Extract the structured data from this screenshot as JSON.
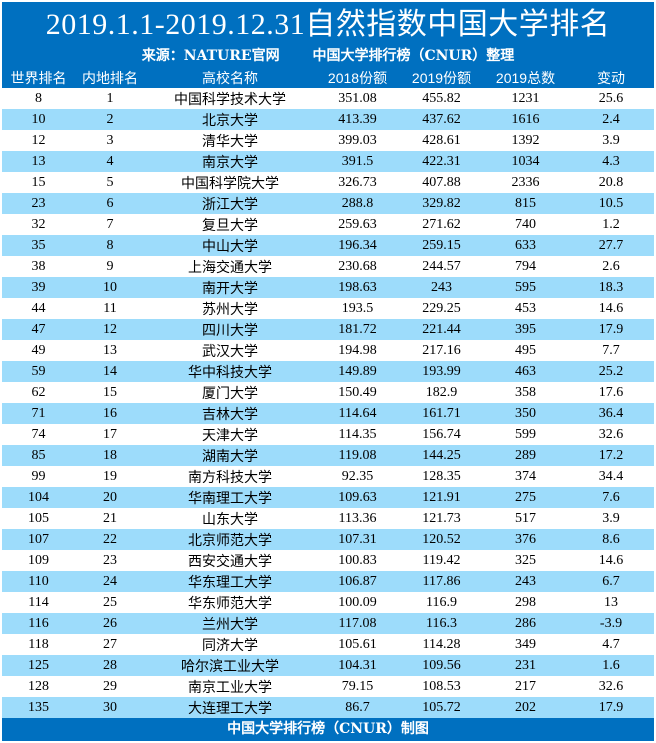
{
  "title": "2019.1.1-2019.12.31自然指数中国大学排名",
  "subtitle_left": "来源：NATURE官网",
  "subtitle_right": "中国大学排行榜（CNUR）整理",
  "footer": "中国大学排行榜（CNUR）制图",
  "colors": {
    "header_bg": "#0070C0",
    "alt_row_bg": "#9DDCFB"
  },
  "columns": [
    "世界排名",
    "内地排名",
    "高校名称",
    "2018份额",
    "2019份额",
    "2019总数",
    "变动"
  ],
  "rows": [
    [
      "8",
      "1",
      "中国科学技术大学",
      "351.08",
      "455.82",
      "1231",
      "25.6"
    ],
    [
      "10",
      "2",
      "北京大学",
      "413.39",
      "437.62",
      "1616",
      "2.4"
    ],
    [
      "12",
      "3",
      "清华大学",
      "399.03",
      "428.61",
      "1392",
      "3.9"
    ],
    [
      "13",
      "4",
      "南京大学",
      "391.5",
      "422.31",
      "1034",
      "4.3"
    ],
    [
      "15",
      "5",
      "中国科学院大学",
      "326.73",
      "407.88",
      "2336",
      "20.8"
    ],
    [
      "23",
      "6",
      "浙江大学",
      "288.8",
      "329.82",
      "815",
      "10.5"
    ],
    [
      "32",
      "7",
      "复旦大学",
      "259.63",
      "271.62",
      "740",
      "1.2"
    ],
    [
      "35",
      "8",
      "中山大学",
      "196.34",
      "259.15",
      "633",
      "27.7"
    ],
    [
      "38",
      "9",
      "上海交通大学",
      "230.68",
      "244.57",
      "794",
      "2.6"
    ],
    [
      "39",
      "10",
      "南开大学",
      "198.63",
      "243",
      "595",
      "18.3"
    ],
    [
      "44",
      "11",
      "苏州大学",
      "193.5",
      "229.25",
      "453",
      "14.6"
    ],
    [
      "47",
      "12",
      "四川大学",
      "181.72",
      "221.44",
      "395",
      "17.9"
    ],
    [
      "49",
      "13",
      "武汉大学",
      "194.98",
      "217.16",
      "495",
      "7.7"
    ],
    [
      "59",
      "14",
      "华中科技大学",
      "149.89",
      "193.99",
      "463",
      "25.2"
    ],
    [
      "62",
      "15",
      "厦门大学",
      "150.49",
      "182.9",
      "358",
      "17.6"
    ],
    [
      "71",
      "16",
      "吉林大学",
      "114.64",
      "161.71",
      "350",
      "36.4"
    ],
    [
      "74",
      "17",
      "天津大学",
      "114.35",
      "156.74",
      "599",
      "32.6"
    ],
    [
      "85",
      "18",
      "湖南大学",
      "119.08",
      "144.25",
      "289",
      "17.2"
    ],
    [
      "99",
      "19",
      "南方科技大学",
      "92.35",
      "128.35",
      "374",
      "34.4"
    ],
    [
      "104",
      "20",
      "华南理工大学",
      "109.63",
      "121.91",
      "275",
      "7.6"
    ],
    [
      "105",
      "21",
      "山东大学",
      "113.36",
      "121.73",
      "517",
      "3.9"
    ],
    [
      "107",
      "22",
      "北京师范大学",
      "107.31",
      "120.52",
      "376",
      "8.6"
    ],
    [
      "109",
      "23",
      "西安交通大学",
      "100.83",
      "119.42",
      "325",
      "14.6"
    ],
    [
      "110",
      "24",
      "华东理工大学",
      "106.87",
      "117.86",
      "243",
      "6.7"
    ],
    [
      "114",
      "25",
      "华东师范大学",
      "100.09",
      "116.9",
      "298",
      "13"
    ],
    [
      "116",
      "26",
      "兰州大学",
      "117.08",
      "116.3",
      "286",
      "-3.9"
    ],
    [
      "118",
      "27",
      "同济大学",
      "105.61",
      "114.28",
      "349",
      "4.7"
    ],
    [
      "125",
      "28",
      "哈尔滨工业大学",
      "104.31",
      "109.56",
      "231",
      "1.6"
    ],
    [
      "128",
      "29",
      "南京工业大学",
      "79.15",
      "108.53",
      "217",
      "32.6"
    ],
    [
      "135",
      "30",
      "大连理工大学",
      "86.7",
      "105.72",
      "202",
      "17.9"
    ]
  ]
}
